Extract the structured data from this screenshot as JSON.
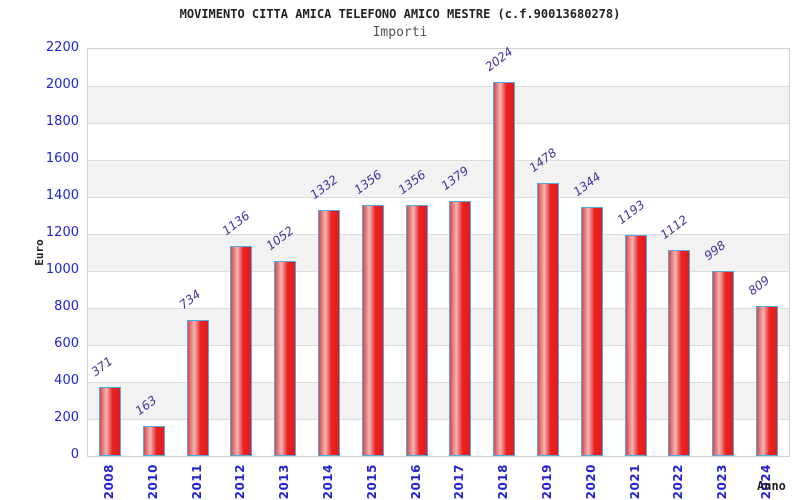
{
  "header": {
    "title": "MOVIMENTO CITTA AMICA TELEFONO AMICO MESTRE (c.f.90013680278)",
    "subtitle": "Importi"
  },
  "chart_data": {
    "type": "bar",
    "title": "MOVIMENTO CITTA AMICA TELEFONO AMICO MESTRE (c.f.90013680278)",
    "subtitle": "Importi",
    "xlabel": "Anno",
    "ylabel": "Euro",
    "categories": [
      "2008",
      "2010",
      "2011",
      "2012",
      "2013",
      "2014",
      "2015",
      "2016",
      "2017",
      "2018",
      "2019",
      "2020",
      "2021",
      "2022",
      "2023",
      "2024"
    ],
    "values": [
      371,
      163,
      734,
      1136,
      1052,
      1332,
      1356,
      1356,
      1379,
      2024,
      1478,
      1344,
      1193,
      1112,
      998,
      809
    ],
    "ylim": [
      0,
      2200
    ],
    "ytick_step": 200,
    "grid": true,
    "legend": "none",
    "band_colors": [
      "#ffffff",
      "#f2f2f2"
    ],
    "bar_fill_color": "#e82020",
    "bar_border_color": "#55aadd",
    "axis_tick_color": "#2323d6",
    "value_label_color": "#37379e",
    "title_color": "#222222",
    "subtitle_color": "#555555"
  }
}
